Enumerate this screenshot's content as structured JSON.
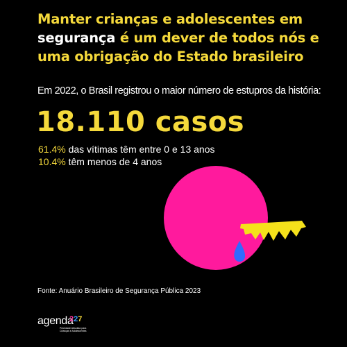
{
  "headline": {
    "line1": "Manter crianças e adolescentes em",
    "line2_white": "segurança",
    "line2_rest": " é um dever de todos nós e",
    "line3": "uma obrigação do Estado brasileiro"
  },
  "subtitle": "Em 2022, o Brasil registrou o maior número de estupros da história:",
  "big_number": "18.110 casos",
  "stats": [
    {
      "pct": "61.4%",
      "text": " das vítimas têm entre 0 e 13 anos"
    },
    {
      "pct": "10.4%",
      "text": " têm menos de 4 anos"
    }
  ],
  "source": "Fonte: Anuário Brasileiro de Segurança Pública 2023",
  "logo": {
    "word": "agenda",
    "digits": [
      "2",
      "2",
      "7"
    ],
    "tagline": "Prioridade Absoluta para Crianças e Adolescentes"
  },
  "colors": {
    "background": "#000000",
    "accent_yellow": "#f5d93b",
    "circle_pink": "#ff1a9d",
    "tear_blue": "#2f6bff",
    "text_white": "#ffffff"
  },
  "icons": {
    "illustration": "crying-face-circle-icon"
  }
}
